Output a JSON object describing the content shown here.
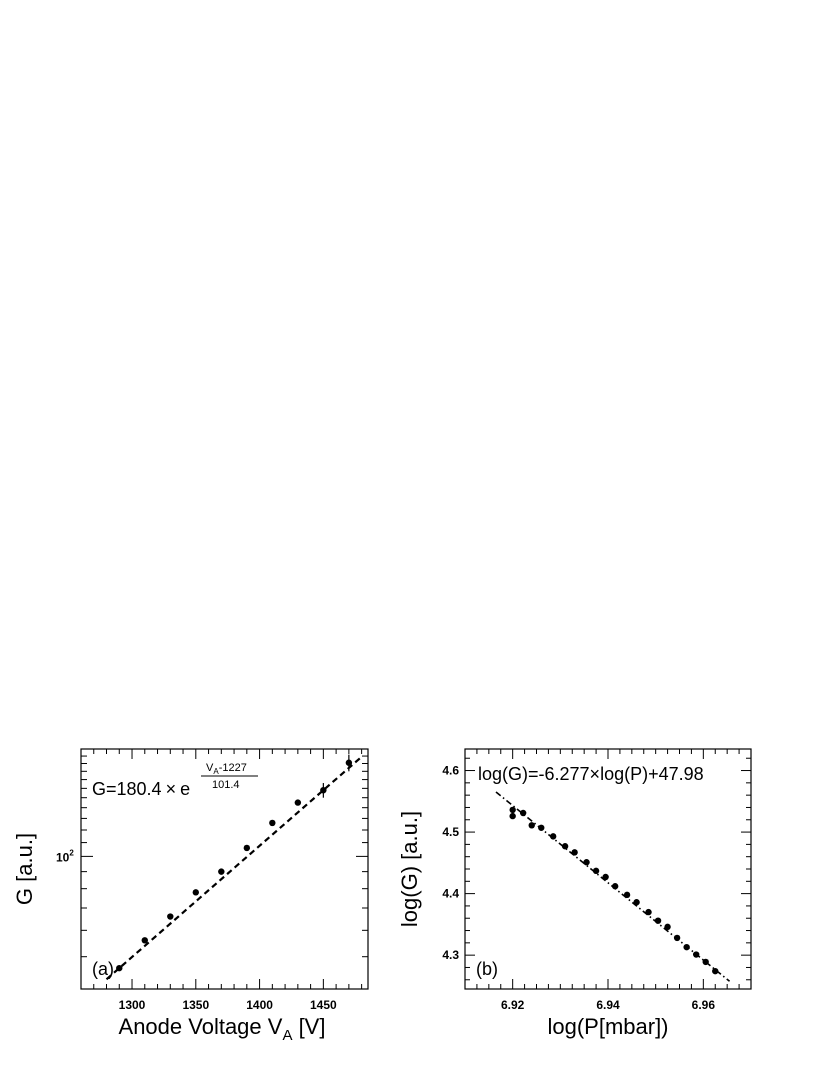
{
  "chart_data": [
    {
      "type": "scatter",
      "panel_label": "(a)",
      "xlabel_main": "Anode Voltage V",
      "xlabel_sub": "A",
      "xlabel_unit": " [V]",
      "ylabel": "G [a.u.]",
      "y_scale": "log",
      "xlim": [
        1260,
        1485
      ],
      "ylim": [
        40,
        210
      ],
      "x_ticks": [
        1300,
        1350,
        1400,
        1450
      ],
      "x_tick_labels": [
        "1300",
        "1350",
        "1400",
        "1450"
      ],
      "y_tick_label_base": "10",
      "y_tick_label_exp": "2",
      "y_tick_value": 100,
      "formula": {
        "prefix": "G=180.4",
        "times": "×",
        "base": "e",
        "num_main": "V",
        "num_sub": "A",
        "num_rest": "-1227",
        "den": "101.4"
      },
      "fit": {
        "style": "dashed",
        "type": "exponential",
        "x_range": [
          1280,
          1480
        ]
      },
      "points": [
        {
          "x": 1290,
          "y": 46.2,
          "err": 0.5
        },
        {
          "x": 1310,
          "y": 56.0,
          "err": 0.6
        },
        {
          "x": 1330,
          "y": 66.0,
          "err": 0.7
        },
        {
          "x": 1350,
          "y": 78.0,
          "err": 0.9
        },
        {
          "x": 1370,
          "y": 90.0,
          "err": 1.0
        },
        {
          "x": 1390,
          "y": 106.0,
          "err": 1.2
        },
        {
          "x": 1410,
          "y": 126.0,
          "err": 1.5
        },
        {
          "x": 1430,
          "y": 145.0,
          "err": 2.0
        },
        {
          "x": 1450,
          "y": 158.0,
          "err": 8.0
        },
        {
          "x": 1470,
          "y": 191.0,
          "err": 11.0
        }
      ]
    },
    {
      "type": "scatter",
      "panel_label": "(b)",
      "xlabel": "log(P[mbar])",
      "ylabel": "log(G) [a.u.]",
      "xlim": [
        6.91,
        6.97
      ],
      "ylim": [
        4.245,
        4.635
      ],
      "x_ticks": [
        6.92,
        6.94,
        6.96
      ],
      "x_tick_labels": [
        "6.92",
        "6.94",
        "6.96"
      ],
      "y_ticks": [
        4.3,
        4.4,
        4.5,
        4.6
      ],
      "y_tick_labels": [
        "4.3",
        "4.4",
        "4.5",
        "4.6"
      ],
      "formula": "log(G)=-6.277×log(P)+47.98",
      "fit": {
        "style": "dash-dot",
        "slope": -6.277,
        "intercept": 47.98,
        "x_range": [
          6.9165,
          6.9655
        ]
      },
      "points": [
        {
          "x": 6.92,
          "y": 4.536
        },
        {
          "x": 6.92,
          "y": 4.526
        },
        {
          "x": 6.9222,
          "y": 4.531
        },
        {
          "x": 6.924,
          "y": 4.511
        },
        {
          "x": 6.926,
          "y": 4.507
        },
        {
          "x": 6.9285,
          "y": 4.493
        },
        {
          "x": 6.931,
          "y": 4.477
        },
        {
          "x": 6.933,
          "y": 4.467
        },
        {
          "x": 6.9355,
          "y": 4.451
        },
        {
          "x": 6.9375,
          "y": 4.437
        },
        {
          "x": 6.9395,
          "y": 4.427
        },
        {
          "x": 6.9415,
          "y": 4.412
        },
        {
          "x": 6.944,
          "y": 4.398
        },
        {
          "x": 6.946,
          "y": 4.386
        },
        {
          "x": 6.9485,
          "y": 4.37
        },
        {
          "x": 6.9505,
          "y": 4.356
        },
        {
          "x": 6.9525,
          "y": 4.346
        },
        {
          "x": 6.9545,
          "y": 4.328
        },
        {
          "x": 6.9565,
          "y": 4.313
        },
        {
          "x": 6.9585,
          "y": 4.301
        },
        {
          "x": 6.9605,
          "y": 4.289
        },
        {
          "x": 6.9625,
          "y": 4.274
        }
      ]
    }
  ]
}
